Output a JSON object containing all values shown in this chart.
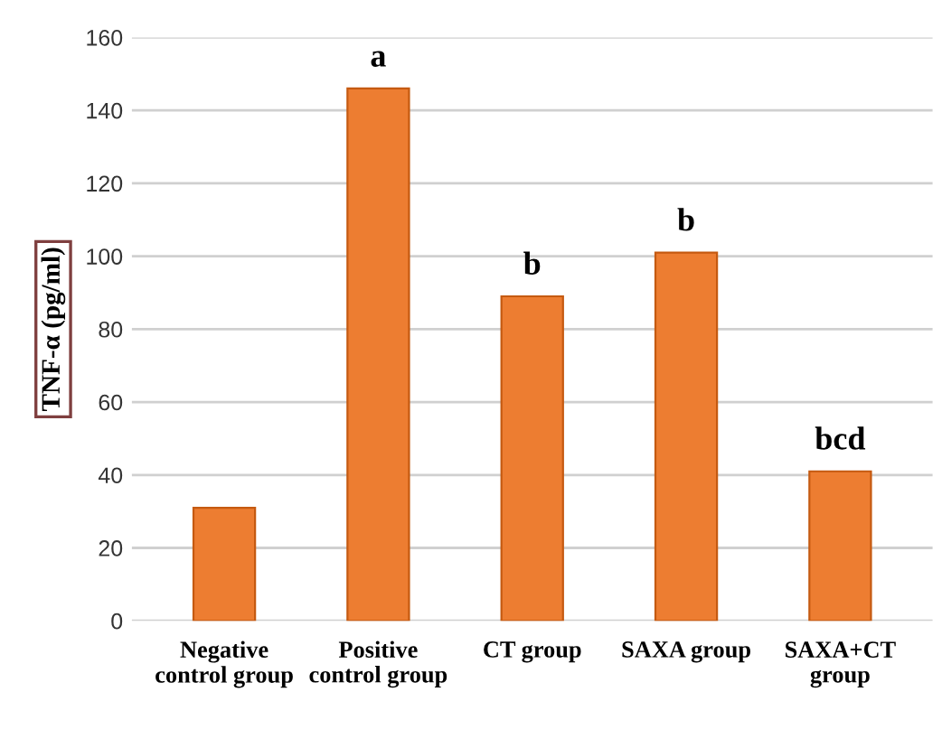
{
  "chart_data": {
    "type": "bar",
    "ylabel": "TNF-α (pg/ml)",
    "categories": [
      "Negative\ncontrol group",
      "Positive\ncontrol group",
      "CT group",
      "SAXA group",
      "SAXA+CT\ngroup"
    ],
    "values": [
      31,
      146,
      89,
      101,
      41
    ],
    "color": "#ed7d31",
    "ylim": [
      0,
      160
    ],
    "yticks": [
      0,
      20,
      40,
      60,
      80,
      100,
      120,
      140,
      160
    ],
    "grid": "y",
    "annotations": [
      {
        "text": "a",
        "x": "Positive\ncontrol group",
        "y": 146
      },
      {
        "text": "b",
        "x": "CT group",
        "y": 89
      },
      {
        "text": "b",
        "x": "SAXA group",
        "y": 101
      },
      {
        "text": "bcd",
        "x": "SAXA+CT\ngroup",
        "y": 41
      }
    ]
  }
}
